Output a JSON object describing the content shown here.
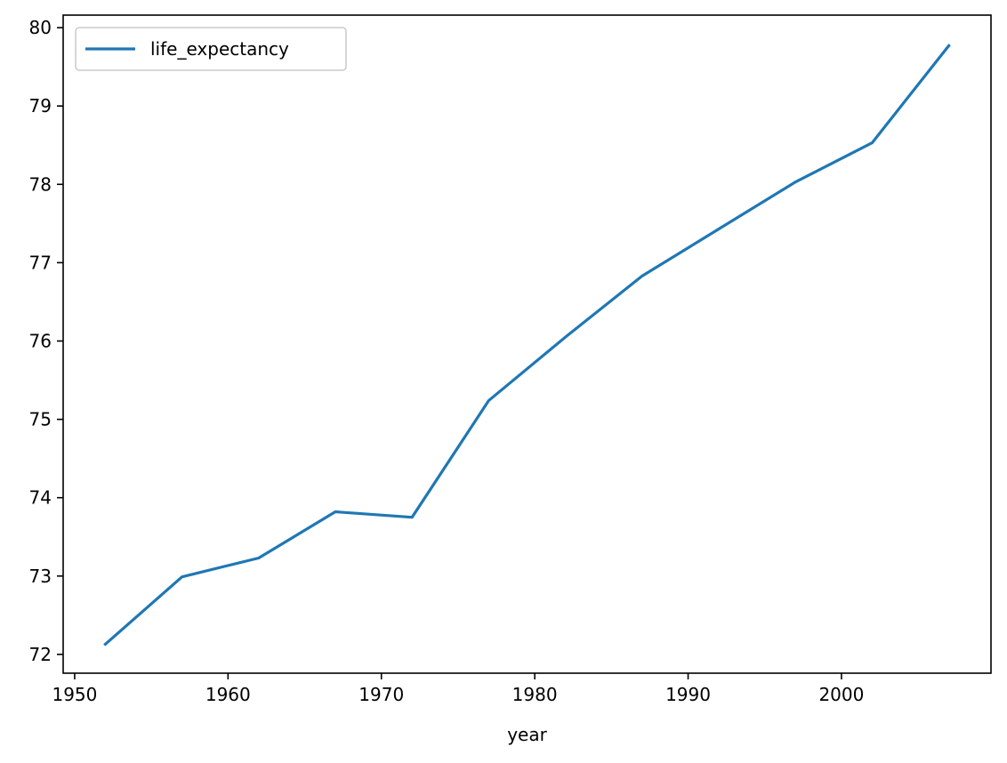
{
  "chart_data": {
    "type": "line",
    "xlabel": "year",
    "ylabel": "",
    "xlim": [
      1949.25,
      2009.75
    ],
    "ylim": [
      71.76,
      80.16
    ],
    "xticks": [
      1950,
      1960,
      1970,
      1980,
      1990,
      2000
    ],
    "yticks": [
      72,
      73,
      74,
      75,
      76,
      77,
      78,
      79,
      80
    ],
    "grid": false,
    "legend_position": "upper left",
    "series": [
      {
        "name": "life_expectancy",
        "color": "#1f77b4",
        "x": [
          1952,
          1957,
          1962,
          1967,
          1972,
          1977,
          1982,
          1987,
          1992,
          1997,
          2002,
          2007
        ],
        "y": [
          72.13,
          72.99,
          73.23,
          73.82,
          73.75,
          75.24,
          76.05,
          76.83,
          77.43,
          78.03,
          78.53,
          79.77
        ]
      }
    ]
  }
}
